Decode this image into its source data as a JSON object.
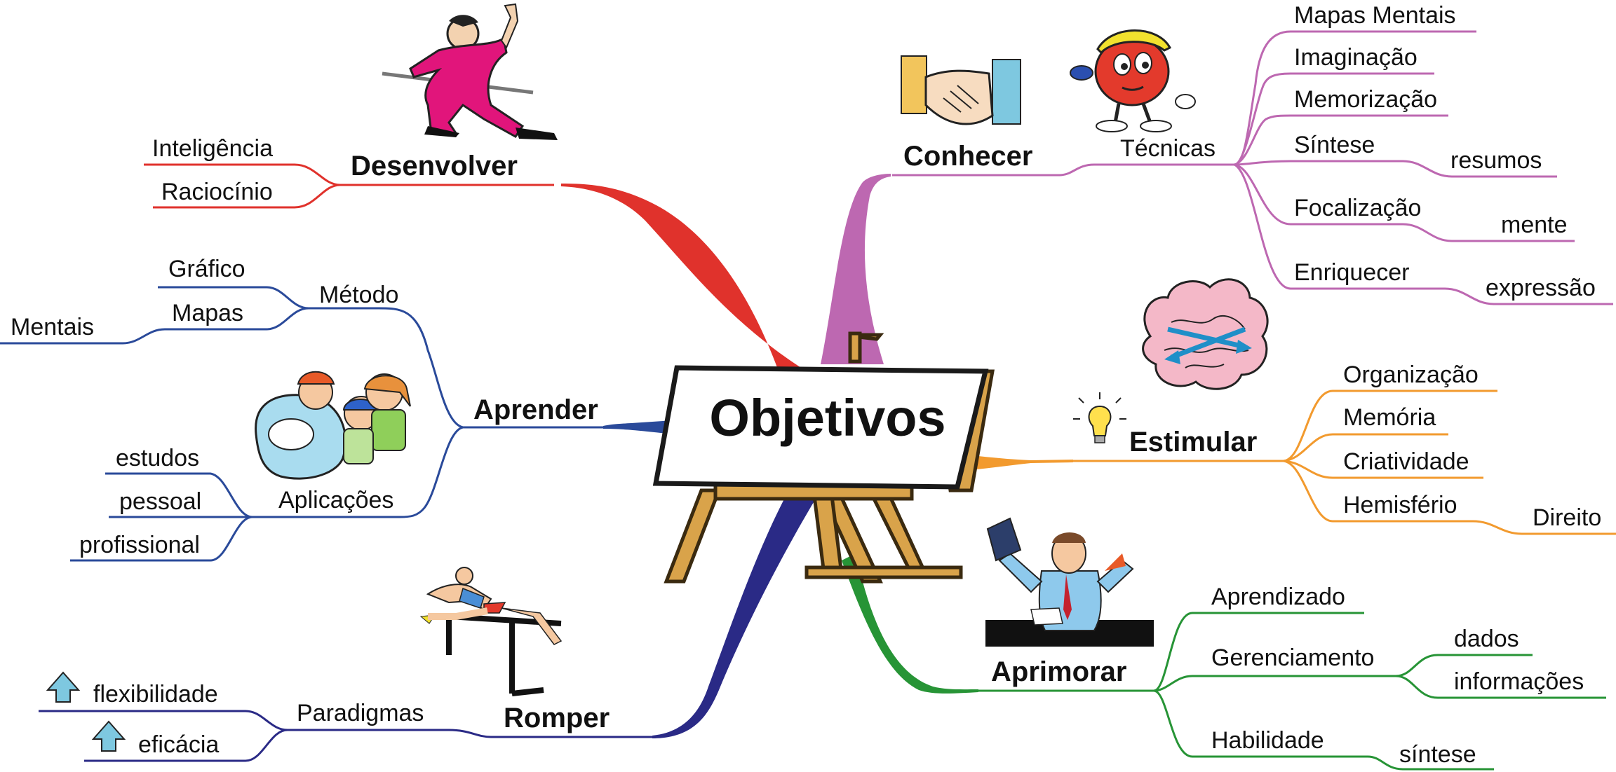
{
  "center": {
    "title": "Objetivos"
  },
  "colors": {
    "desenvolver": "#e0322c",
    "conhecer": "#bd68b1",
    "aprender": "#2a4a9a",
    "estimular": "#f29a2e",
    "romper": "#2a2a86",
    "aprimorar": "#279436"
  },
  "icons": [
    "martial-artist-icon",
    "handshake-icon",
    "apple-mascot-icon",
    "kids-computer-icon",
    "brain-icon",
    "lightbulb-icon",
    "worried-man-icon",
    "hurdler-icon",
    "up-arrow-icon",
    "easel-icon"
  ],
  "branches": {
    "desenvolver": {
      "label": "Desenvolver",
      "children": [
        "Inteligência",
        "Raciocínio"
      ]
    },
    "conhecer": {
      "label": "Conhecer",
      "tecnicas": "Técnicas",
      "items": [
        "Mapas Mentais",
        "Imaginação",
        "Memorização",
        "Síntese",
        "resumos",
        "Focalização",
        "mente",
        "Enriquecer",
        "expressão"
      ]
    },
    "aprender": {
      "label": "Aprender",
      "metodo": {
        "label": "Método",
        "items": [
          "Gráfico",
          "Mapas",
          "Mentais"
        ]
      },
      "aplicacoes": {
        "label": "Aplicações",
        "items": [
          "estudos",
          "pessoal",
          "profissional"
        ]
      }
    },
    "estimular": {
      "label": "Estimular",
      "items": [
        "Organização",
        "Memória",
        "Criatividade",
        "Hemisfério",
        "Direito"
      ]
    },
    "romper": {
      "label": "Romper",
      "paradigmas": "Paradigmas",
      "items": [
        "flexibilidade",
        "eficácia"
      ]
    },
    "aprimorar": {
      "label": "Aprimorar",
      "items": [
        "Aprendizado",
        "Gerenciamento",
        "dados",
        "informações",
        "Habilidade",
        "síntese"
      ]
    }
  }
}
